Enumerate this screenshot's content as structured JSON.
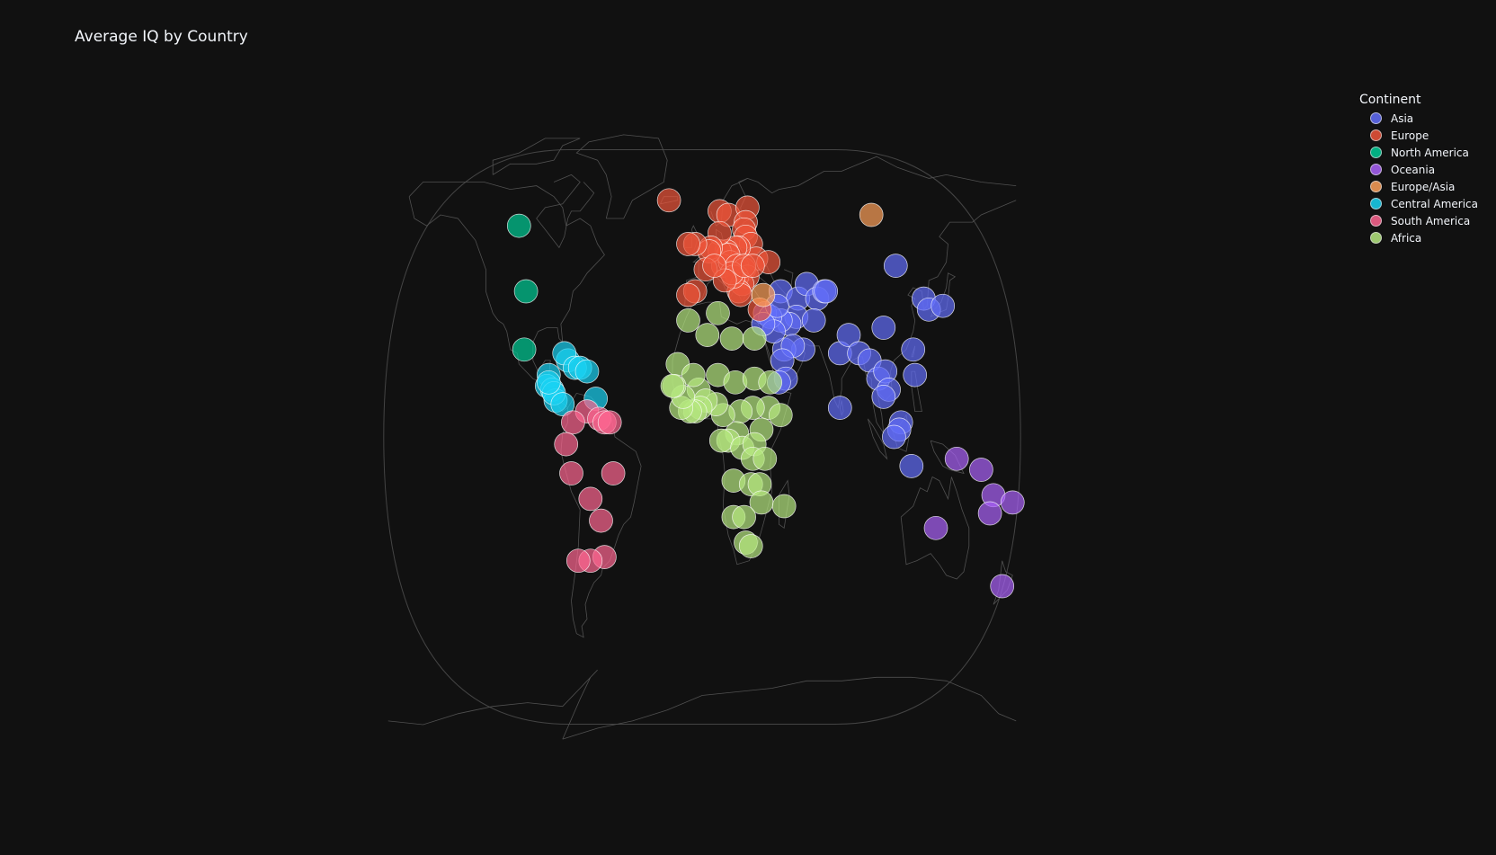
{
  "chart_data": {
    "type": "scatter",
    "title": "Average IQ by Country",
    "xlabel": "",
    "ylabel": "",
    "grid": false,
    "projection": "natural earth",
    "axis_ranges": {
      "lon": [
        -180,
        180
      ],
      "lat": [
        -90,
        90
      ]
    },
    "marker_size_note": "bubble size constant",
    "legend": {
      "title": "Continent",
      "placement": "top-right"
    },
    "series": [
      {
        "name": "Asia",
        "color": "#636efa",
        "points": [
          [
            45,
            40
          ],
          [
            55,
            38
          ],
          [
            60,
            42
          ],
          [
            66,
            38
          ],
          [
            54,
            33
          ],
          [
            64,
            32
          ],
          [
            70,
            40
          ],
          [
            58,
            24
          ],
          [
            50,
            31
          ],
          [
            47,
            24
          ],
          [
            45,
            32
          ],
          [
            52,
            25
          ],
          [
            46,
            21
          ],
          [
            48,
            16
          ],
          [
            36,
            34
          ],
          [
            39,
            33
          ],
          [
            41,
            29
          ],
          [
            35,
            31
          ],
          [
            43,
            36
          ],
          [
            44,
            15
          ],
          [
            79,
            23
          ],
          [
            84,
            28
          ],
          [
            90,
            23
          ],
          [
            96,
            21
          ],
          [
            104,
            30
          ],
          [
            101,
            16
          ],
          [
            105,
            18
          ],
          [
            107,
            13
          ],
          [
            104,
            11
          ],
          [
            111,
            47
          ],
          [
            127,
            38
          ],
          [
            130,
            35
          ],
          [
            138,
            36
          ],
          [
            121,
            24
          ],
          [
            122,
            17
          ],
          [
            114,
            4
          ],
          [
            113,
            2
          ],
          [
            110,
            0
          ],
          [
            120,
            -8
          ],
          [
            79,
            8
          ],
          [
            71,
            40
          ]
        ]
      },
      {
        "name": "Europe",
        "color": "#ef553b",
        "points": [
          [
            -19,
            65
          ],
          [
            10,
            62
          ],
          [
            15,
            61
          ],
          [
            26,
            63
          ],
          [
            25,
            59
          ],
          [
            24,
            57
          ],
          [
            25,
            55
          ],
          [
            28,
            53
          ],
          [
            31,
            49
          ],
          [
            38,
            48
          ],
          [
            21,
            52
          ],
          [
            19,
            52
          ],
          [
            14,
            51
          ],
          [
            10,
            51
          ],
          [
            12,
            47
          ],
          [
            16,
            48
          ],
          [
            15,
            50
          ],
          [
            20,
            47
          ],
          [
            24,
            46
          ],
          [
            26,
            44
          ],
          [
            20,
            44
          ],
          [
            23,
            42
          ],
          [
            21,
            40
          ],
          [
            22,
            39
          ],
          [
            18,
            44
          ],
          [
            17,
            45
          ],
          [
            10,
            56
          ],
          [
            5,
            52
          ],
          [
            4,
            51
          ],
          [
            2,
            46
          ],
          [
            -4,
            53
          ],
          [
            -8,
            53
          ],
          [
            -4,
            40
          ],
          [
            -8,
            39
          ],
          [
            13,
            43
          ],
          [
            7,
            47
          ],
          [
            24,
            47
          ],
          [
            29,
            47
          ],
          [
            33,
            35
          ]
        ]
      },
      {
        "name": "North America",
        "color": "#00cc96",
        "points": [
          [
            -105,
            58
          ],
          [
            -101,
            40
          ],
          [
            -102,
            24
          ]
        ]
      },
      {
        "name": "Oceania",
        "color": "#ab63fa",
        "points": [
          [
            134,
            -25
          ],
          [
            146,
            -6
          ],
          [
            160,
            -9
          ],
          [
            167,
            -16
          ],
          [
            165,
            -21
          ],
          [
            178,
            -18
          ],
          [
            172,
            -41
          ]
        ]
      },
      {
        "name": "Europe/Asia",
        "color": "#ffa15a",
        "points": [
          [
            97,
            61
          ],
          [
            35,
            39
          ]
        ]
      },
      {
        "name": "Central America",
        "color": "#19d3f3",
        "points": [
          [
            -77,
            21
          ],
          [
            -79,
            23
          ],
          [
            -73,
            19
          ],
          [
            -70,
            19
          ],
          [
            -66,
            18
          ],
          [
            -88,
            17
          ],
          [
            -89,
            14
          ],
          [
            -86,
            13
          ],
          [
            -84,
            10
          ],
          [
            -85,
            12
          ],
          [
            -80,
            9
          ],
          [
            -88,
            15
          ],
          [
            -61,
            10.5
          ]
        ]
      },
      {
        "name": "South America",
        "color": "#ff6692",
        "points": [
          [
            -66,
            7
          ],
          [
            -74,
            4
          ],
          [
            -59,
            5
          ],
          [
            -56,
            4
          ],
          [
            -53,
            4
          ],
          [
            -78,
            -2
          ],
          [
            -75,
            -10
          ],
          [
            -64,
            -17
          ],
          [
            -51,
            -10
          ],
          [
            -58,
            -23
          ],
          [
            -56,
            -33
          ],
          [
            -64,
            -34
          ],
          [
            -71,
            -34
          ]
        ]
      },
      {
        "name": "Africa",
        "color": "#b6e880",
        "points": [
          [
            -8,
            32
          ],
          [
            3,
            28
          ],
          [
            9,
            34
          ],
          [
            17,
            27
          ],
          [
            30,
            27
          ],
          [
            -14,
            20
          ],
          [
            -2,
            13
          ],
          [
            -5,
            17
          ],
          [
            9,
            17
          ],
          [
            19,
            15
          ],
          [
            30,
            16
          ],
          [
            39,
            15
          ],
          [
            38,
            8
          ],
          [
            45,
            6
          ],
          [
            34,
            2
          ],
          [
            29,
            8
          ],
          [
            22,
            7
          ],
          [
            20,
            1
          ],
          [
            12,
            6
          ],
          [
            8,
            9
          ],
          [
            2,
            10
          ],
          [
            -1,
            8
          ],
          [
            -4,
            7
          ],
          [
            -7,
            7
          ],
          [
            -12,
            8
          ],
          [
            -11,
            11
          ],
          [
            -16,
            14
          ],
          [
            -17,
            14
          ],
          [
            15,
            -1
          ],
          [
            11,
            -1
          ],
          [
            23,
            -3
          ],
          [
            30,
            -2
          ],
          [
            29,
            -6
          ],
          [
            36,
            -6
          ],
          [
            18,
            -12
          ],
          [
            28,
            -13
          ],
          [
            33,
            -13
          ],
          [
            34,
            -18
          ],
          [
            47,
            -19
          ],
          [
            18,
            -22
          ],
          [
            24,
            -22
          ],
          [
            25,
            -29
          ],
          [
            28,
            -30
          ]
        ]
      }
    ]
  }
}
